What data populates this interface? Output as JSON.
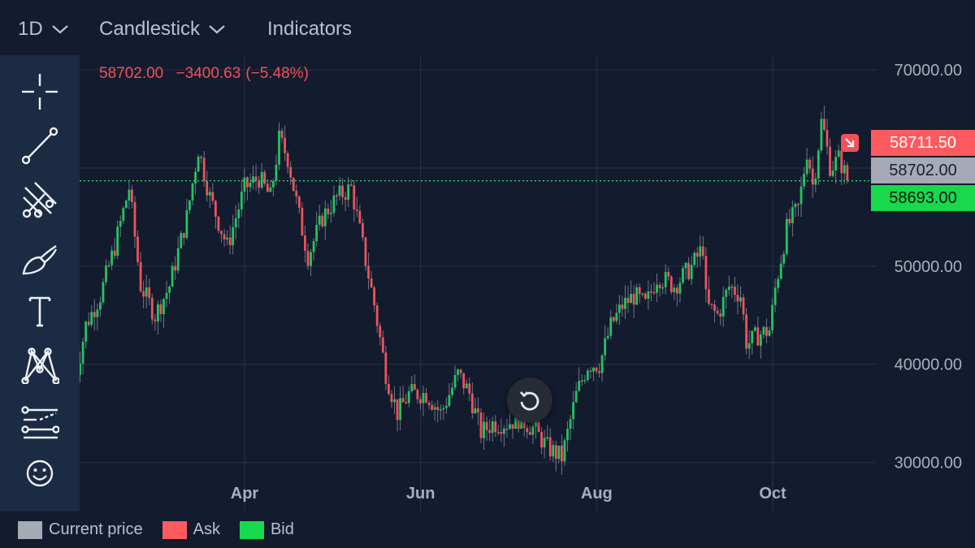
{
  "toolbar": {
    "interval": "1D",
    "chart_type": "Candlestick",
    "indicators": "Indicators"
  },
  "readout": {
    "price": "58702.00",
    "change": "−3400.63",
    "change_pct": "(−5.48%)"
  },
  "sidebar_tools": [
    "crosshair-icon",
    "trend-line-icon",
    "pitchfork-icon",
    "brush-icon",
    "text-icon",
    "pattern-icon",
    "prediction-icon",
    "emoji-icon"
  ],
  "price_tags": {
    "ask": "58711.50",
    "current": "58702.00",
    "bid": "58693.00"
  },
  "legend": {
    "current": "Current price",
    "ask": "Ask",
    "bid": "Bid"
  },
  "colors": {
    "up": "#22c55e",
    "down": "#f0525a",
    "current": "#a6aab6",
    "ask": "#ff5a5f",
    "bid": "#18d84e",
    "background": "#131b2e",
    "sidebar": "#1b2b43"
  },
  "chart_data": {
    "type": "candlestick",
    "x_ticks": [
      "Apr",
      "Jun",
      "Aug",
      "Oct"
    ],
    "y_ticks": [
      "70000.00",
      "50000.00",
      "40000.00",
      "30000.00"
    ],
    "ylim": [
      25000,
      71500
    ],
    "current_price": 58702.0,
    "trend_points": [
      {
        "x": "Feb 01",
        "y": 38000
      },
      {
        "x": "Feb 05",
        "y": 44000
      },
      {
        "x": "Feb 10",
        "y": 47000
      },
      {
        "x": "Feb 15",
        "y": 52000
      },
      {
        "x": "Feb 20",
        "y": 58000
      },
      {
        "x": "Feb 24",
        "y": 48000
      },
      {
        "x": "Mar 01",
        "y": 45000
      },
      {
        "x": "Mar 06",
        "y": 48000
      },
      {
        "x": "Mar 12",
        "y": 55000
      },
      {
        "x": "Mar 16",
        "y": 62000
      },
      {
        "x": "Mar 20",
        "y": 57000
      },
      {
        "x": "Mar 26",
        "y": 52000
      },
      {
        "x": "Apr 01",
        "y": 58000
      },
      {
        "x": "Apr 06",
        "y": 59000
      },
      {
        "x": "Apr 10",
        "y": 57000
      },
      {
        "x": "Apr 13",
        "y": 63000
      },
      {
        "x": "Apr 16",
        "y": 61000
      },
      {
        "x": "Apr 20",
        "y": 55000
      },
      {
        "x": "Apr 23",
        "y": 51000
      },
      {
        "x": "Apr 28",
        "y": 55000
      },
      {
        "x": "May 03",
        "y": 57000
      },
      {
        "x": "May 08",
        "y": 58000
      },
      {
        "x": "May 12",
        "y": 52000
      },
      {
        "x": "May 16",
        "y": 46000
      },
      {
        "x": "May 20",
        "y": 39000
      },
      {
        "x": "May 24",
        "y": 35000
      },
      {
        "x": "May 28",
        "y": 37000
      },
      {
        "x": "Jun 03",
        "y": 37000
      },
      {
        "x": "Jun 08",
        "y": 35000
      },
      {
        "x": "Jun 14",
        "y": 39000
      },
      {
        "x": "Jun 18",
        "y": 37000
      },
      {
        "x": "Jun 22",
        "y": 33000
      },
      {
        "x": "Jun 26",
        "y": 34000
      },
      {
        "x": "Jul 01",
        "y": 34000
      },
      {
        "x": "Jul 05",
        "y": 34500
      },
      {
        "x": "Jul 10",
        "y": 33500
      },
      {
        "x": "Jul 15",
        "y": 31500
      },
      {
        "x": "Jul 20",
        "y": 30500
      },
      {
        "x": "Jul 25",
        "y": 37000
      },
      {
        "x": "Jul 29",
        "y": 40000
      },
      {
        "x": "Aug 02",
        "y": 40000
      },
      {
        "x": "Aug 06",
        "y": 44000
      },
      {
        "x": "Aug 10",
        "y": 46000
      },
      {
        "x": "Aug 14",
        "y": 47000
      },
      {
        "x": "Aug 18",
        "y": 46000
      },
      {
        "x": "Aug 22",
        "y": 49000
      },
      {
        "x": "Aug 28",
        "y": 48000
      },
      {
        "x": "Sep 03",
        "y": 50000
      },
      {
        "x": "Sep 07",
        "y": 52000
      },
      {
        "x": "Sep 08",
        "y": 46000
      },
      {
        "x": "Sep 12",
        "y": 45000
      },
      {
        "x": "Sep 16",
        "y": 48000
      },
      {
        "x": "Sep 20",
        "y": 47000
      },
      {
        "x": "Sep 22",
        "y": 42000
      },
      {
        "x": "Sep 26",
        "y": 43000
      },
      {
        "x": "Sep 30",
        "y": 43500
      },
      {
        "x": "Oct 02",
        "y": 48000
      },
      {
        "x": "Oct 06",
        "y": 54000
      },
      {
        "x": "Oct 10",
        "y": 56000
      },
      {
        "x": "Oct 13",
        "y": 62000
      },
      {
        "x": "Oct 15",
        "y": 58000
      },
      {
        "x": "Oct 18",
        "y": 65000
      },
      {
        "x": "Oct 21",
        "y": 60000
      },
      {
        "x": "Oct 24",
        "y": 61000
      },
      {
        "x": "Oct 27",
        "y": 58702
      }
    ]
  }
}
